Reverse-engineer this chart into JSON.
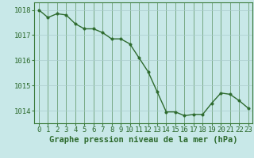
{
  "x": [
    0,
    1,
    2,
    3,
    4,
    5,
    6,
    7,
    8,
    9,
    10,
    11,
    12,
    13,
    14,
    15,
    16,
    17,
    18,
    19,
    20,
    21,
    22,
    23
  ],
  "y": [
    1018.0,
    1017.7,
    1017.85,
    1017.8,
    1017.45,
    1017.25,
    1017.25,
    1017.1,
    1016.85,
    1016.85,
    1016.65,
    1016.1,
    1015.55,
    1014.75,
    1013.95,
    1013.95,
    1013.8,
    1013.85,
    1013.85,
    1014.3,
    1014.7,
    1014.65,
    1014.4,
    1014.1
  ],
  "line_color": "#2d6a2d",
  "marker_color": "#2d6a2d",
  "bg_color": "#c8e8e8",
  "grid_color_v": "#3a7a3a",
  "grid_color_h": "#aacccc",
  "axis_label_color": "#2d6a2d",
  "border_color": "#3a7a3a",
  "xlabel": "Graphe pression niveau de la mer (hPa)",
  "ylim": [
    1013.5,
    1018.3
  ],
  "yticks": [
    1014,
    1015,
    1016,
    1017,
    1018
  ],
  "xticks": [
    0,
    1,
    2,
    3,
    4,
    5,
    6,
    7,
    8,
    9,
    10,
    11,
    12,
    13,
    14,
    15,
    16,
    17,
    18,
    19,
    20,
    21,
    22,
    23
  ],
  "xlabel_fontsize": 7.5,
  "tick_fontsize": 6.5,
  "line_width": 1.0,
  "marker_size": 2.5
}
